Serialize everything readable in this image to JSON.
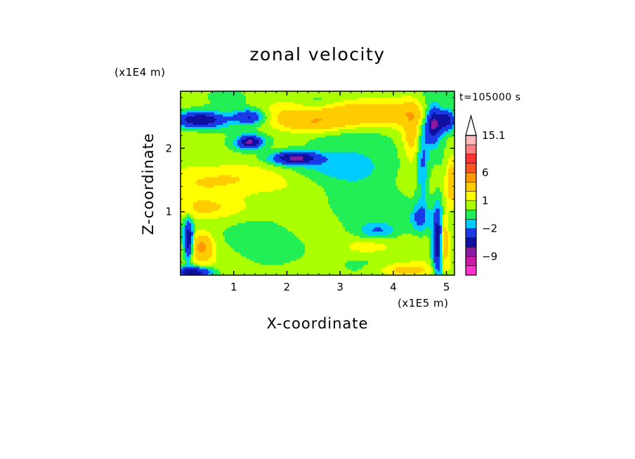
{
  "chart_data": {
    "type": "heatmap",
    "title": "zonal velocity",
    "xlabel": "X-coordinate",
    "ylabel": "Z-coordinate",
    "x_unit_label": "(x1E5 m)",
    "y_unit_label": "(x1E4 m)",
    "time_label": "t=105000 s",
    "xlim": [
      0,
      5.15
    ],
    "ylim": [
      0,
      2.9
    ],
    "x_ticks": [
      1,
      2,
      3,
      4,
      5
    ],
    "x_tick_labels": [
      "1",
      "2",
      "3",
      "4",
      "5"
    ],
    "y_ticks": [
      1,
      2
    ],
    "y_tick_labels": [
      "1",
      "2"
    ],
    "colorbar": {
      "levels": [
        -15,
        -12,
        -9,
        -6,
        -4,
        -2,
        -1,
        0,
        1,
        2,
        4,
        6,
        9,
        12,
        15.1
      ],
      "colors": [
        "#ff33cc",
        "#cc1aa8",
        "#8c1aa0",
        "#1010a0",
        "#1a3ae6",
        "#00ccff",
        "#22ee55",
        "#aaff00",
        "#ffff00",
        "#ffcc00",
        "#ff9900",
        "#ff5522",
        "#ff3333",
        "#ff8080",
        "#ffbbbb"
      ],
      "extend": "max",
      "tick_labels": [
        {
          "value": 15.1,
          "label": "15.1"
        },
        {
          "value": 6,
          "label": "6"
        },
        {
          "value": 1,
          "label": "1"
        },
        {
          "value": -2,
          "label": "−2"
        },
        {
          "value": -9,
          "label": "−9"
        }
      ]
    },
    "field_features": [
      {
        "x": 0.35,
        "z": 2.45,
        "u": -6.5,
        "sx": 0.35,
        "sz": 0.09
      },
      {
        "x": 1.3,
        "z": 2.5,
        "u": -4.5,
        "sx": 0.2,
        "sz": 0.08
      },
      {
        "x": 1.3,
        "z": 2.1,
        "u": -6.5,
        "sx": 0.16,
        "sz": 0.07
      },
      {
        "x": 2.15,
        "z": 1.85,
        "u": -6.5,
        "sx": 0.3,
        "sz": 0.07
      },
      {
        "x": 2.7,
        "z": 1.7,
        "u": -2.5,
        "sx": 0.75,
        "sz": 0.2
      },
      {
        "x": 2.55,
        "z": 2.7,
        "u": -1.5,
        "sx": 0.3,
        "sz": 0.12
      },
      {
        "x": 3.2,
        "z": 2.55,
        "u": 3.5,
        "sx": 1.1,
        "sz": 0.13
      },
      {
        "x": 2.5,
        "z": 2.38,
        "u": 2.5,
        "sx": 0.5,
        "sz": 0.1
      },
      {
        "x": 1.2,
        "z": 1.55,
        "u": 2.5,
        "sx": 1.0,
        "sz": 0.2
      },
      {
        "x": 2.0,
        "z": 2.18,
        "u": -0.5,
        "sx": 1.0,
        "sz": 0.13
      },
      {
        "x": 0.4,
        "z": 1.8,
        "u": -0.6,
        "sx": 0.4,
        "sz": 0.22
      },
      {
        "x": 2.2,
        "z": 0.7,
        "u": -0.5,
        "sx": 0.9,
        "sz": 0.3
      },
      {
        "x": 3.9,
        "z": 1.15,
        "u": -0.6,
        "sx": 0.6,
        "sz": 0.55
      },
      {
        "x": 3.7,
        "z": 0.7,
        "u": -2.0,
        "sx": 0.25,
        "sz": 0.08
      },
      {
        "x": 0.4,
        "z": 0.45,
        "u": 4.0,
        "sx": 0.15,
        "sz": 0.15
      },
      {
        "x": 0.15,
        "z": 0.55,
        "u": -6.5,
        "sx": 0.06,
        "sz": 0.22
      },
      {
        "x": 0.25,
        "z": 0.05,
        "u": -6.0,
        "sx": 0.25,
        "sz": 0.06
      },
      {
        "x": 0.45,
        "z": 1.05,
        "u": 1.5,
        "sx": 0.6,
        "sz": 0.12
      },
      {
        "x": 4.75,
        "z": 2.4,
        "u": -7.0,
        "sx": 0.1,
        "sz": 0.2
      },
      {
        "x": 5.0,
        "z": 2.45,
        "u": -6.0,
        "sx": 0.12,
        "sz": 0.12
      },
      {
        "x": 4.55,
        "z": 1.8,
        "u": -2.5,
        "sx": 0.08,
        "sz": 0.5
      },
      {
        "x": 4.85,
        "z": 0.5,
        "u": -6.5,
        "sx": 0.08,
        "sz": 0.4
      },
      {
        "x": 4.95,
        "z": 0.55,
        "u": 5.0,
        "sx": 0.06,
        "sz": 0.3
      },
      {
        "x": 4.5,
        "z": 0.9,
        "u": -2.5,
        "sx": 0.12,
        "sz": 0.15
      },
      {
        "x": 4.2,
        "z": 0.08,
        "u": 2.5,
        "sx": 0.4,
        "sz": 0.08
      },
      {
        "x": 4.35,
        "z": 2.2,
        "u": 2.5,
        "sx": 0.12,
        "sz": 0.3
      },
      {
        "x": 3.5,
        "z": 0.45,
        "u": 1.5,
        "sx": 0.4,
        "sz": 0.12
      },
      {
        "x": 5.1,
        "z": 1.5,
        "u": 3.0,
        "sx": 0.08,
        "sz": 0.3
      }
    ]
  }
}
